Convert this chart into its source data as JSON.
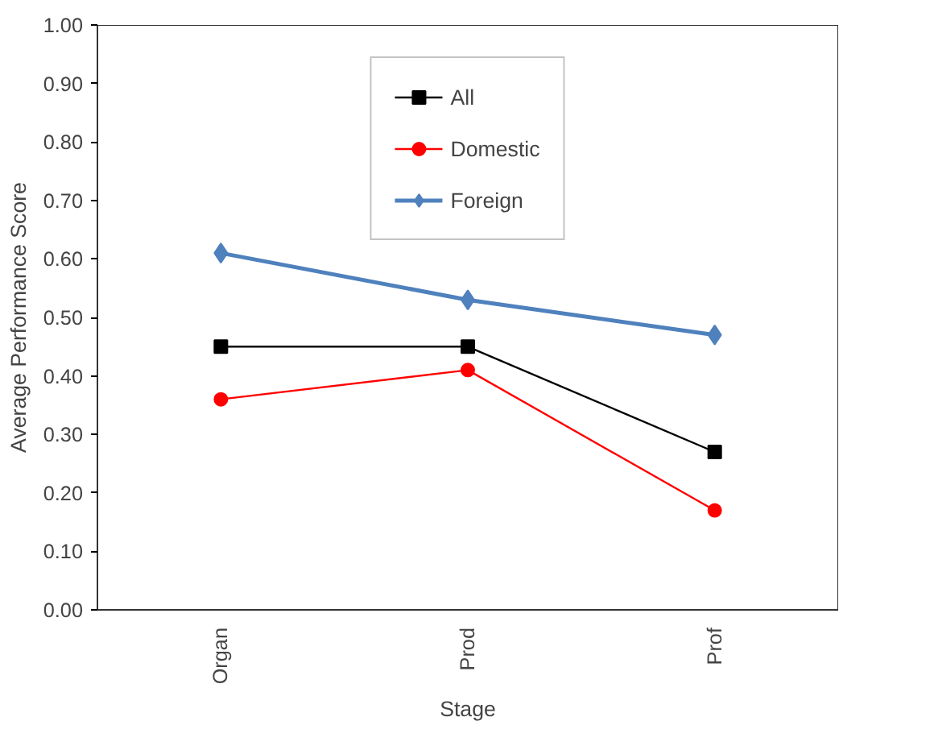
{
  "chart_data": {
    "type": "line",
    "xlabel": "Stage",
    "ylabel": "Average Performance Score",
    "categories": [
      "Organ",
      "Prod",
      "Prof"
    ],
    "series": [
      {
        "name": "All",
        "color": "#000000",
        "marker": "square",
        "values": [
          0.45,
          0.45,
          0.27
        ]
      },
      {
        "name": "Domestic",
        "color": "#ff0000",
        "marker": "circle",
        "values": [
          0.36,
          0.41,
          0.17
        ]
      },
      {
        "name": "Foreign",
        "color": "#4f81bd",
        "marker": "diamond",
        "values": [
          0.61,
          0.53,
          0.47
        ]
      }
    ],
    "ylim": [
      0,
      1
    ],
    "yticks": [
      {
        "value": 0,
        "label": "0.00"
      },
      {
        "value": 0.1,
        "label": "0.10"
      },
      {
        "value": 0.2,
        "label": "0.20"
      },
      {
        "value": 0.3,
        "label": "0.30"
      },
      {
        "value": 0.4,
        "label": "0.40"
      },
      {
        "value": 0.5,
        "label": "0.50"
      },
      {
        "value": 0.6,
        "label": "0.60"
      },
      {
        "value": 0.7,
        "label": "0.70"
      },
      {
        "value": 0.8,
        "label": "0.80"
      },
      {
        "value": 0.9,
        "label": "0.90"
      },
      {
        "value": 1,
        "label": "1.00"
      }
    ],
    "grid": false,
    "legend": "top"
  }
}
